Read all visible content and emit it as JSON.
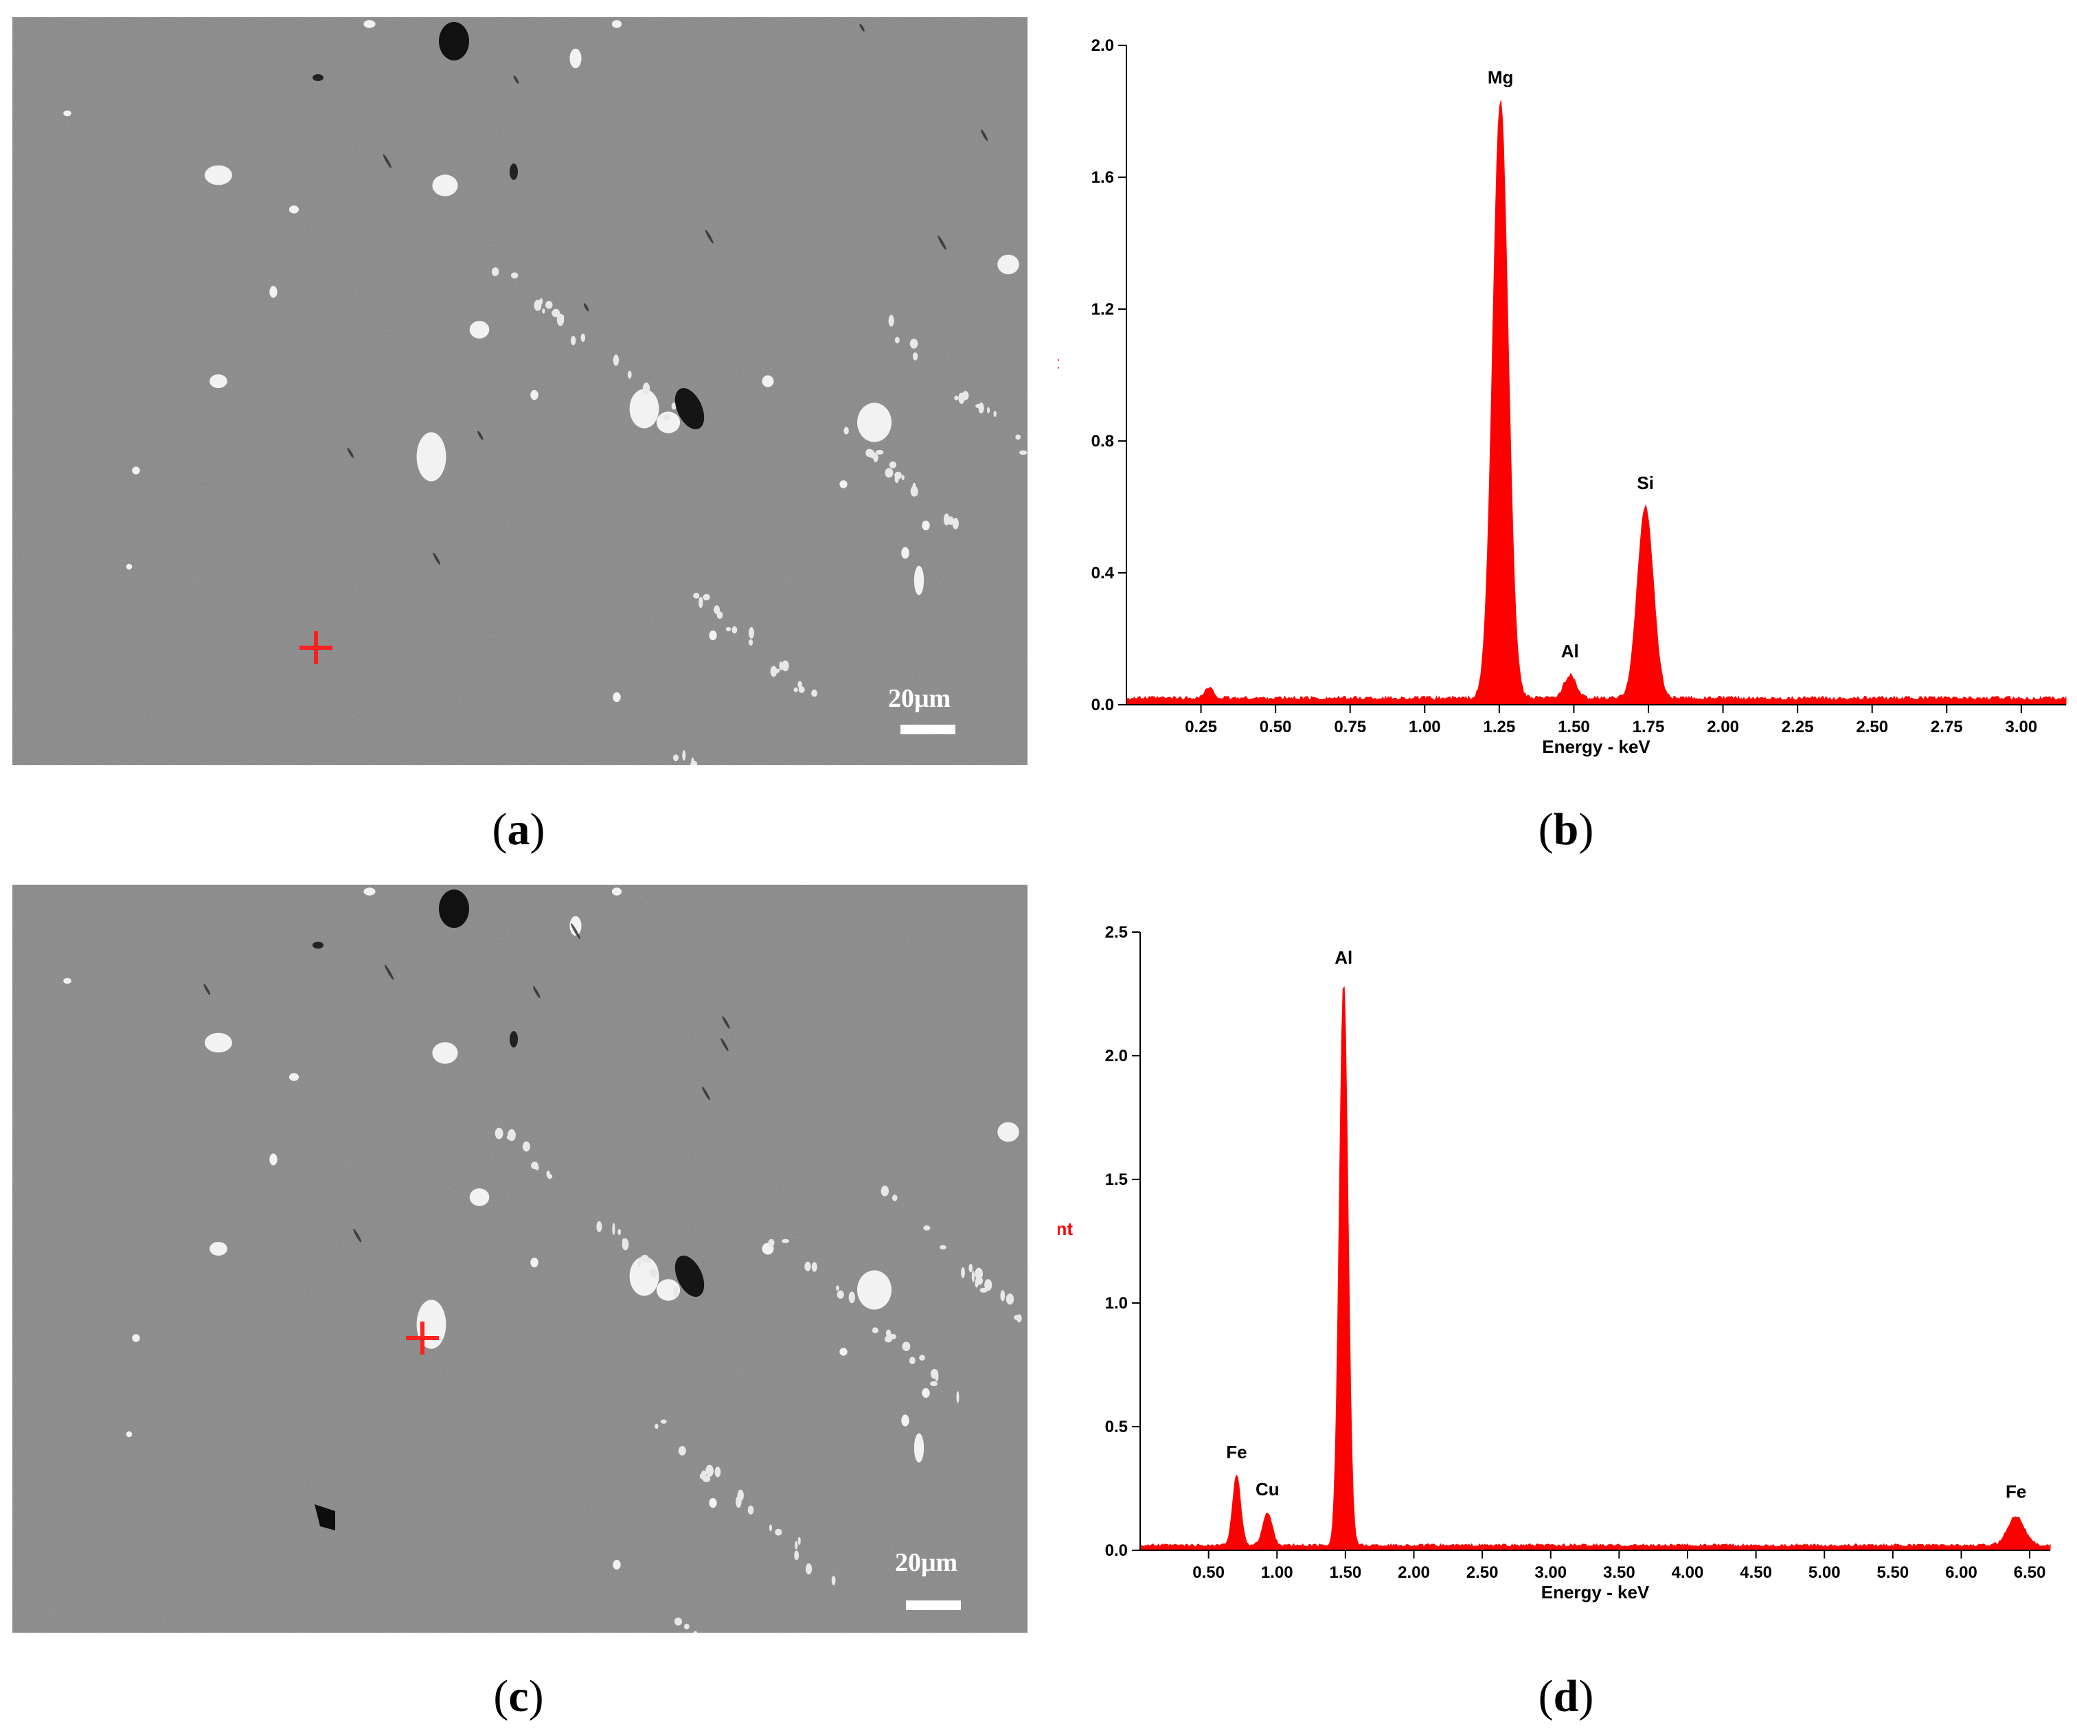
{
  "panels": {
    "a": {
      "label": "a",
      "scale_text": "20μm"
    },
    "b": {
      "label": "b"
    },
    "c": {
      "label": "c",
      "scale_text": "20μm"
    },
    "d": {
      "label": "d"
    }
  },
  "colors": {
    "spectrum": "#ff0000",
    "marker": "#ff2020",
    "sem_background": "#808080"
  },
  "chart_data": [
    {
      "id": "b",
      "type": "area",
      "title": "",
      "xlabel": "Energy - keV",
      "ylabel": "KCnt",
      "xlim": [
        0,
        3.15
      ],
      "ylim": [
        0,
        2.0
      ],
      "xticks": [
        "0.25",
        "0.50",
        "0.75",
        "1.00",
        "1.25",
        "1.50",
        "1.75",
        "2.00",
        "2.25",
        "2.50",
        "2.75",
        "3.00"
      ],
      "yticks": [
        "0.0",
        "0.4",
        "0.8",
        "1.2",
        "1.6",
        "2.0"
      ],
      "baseline": 0.02,
      "peaks": [
        {
          "label": "Mg",
          "x": 1.254,
          "height": 1.81,
          "width": 0.026
        },
        {
          "label": "Al",
          "x": 1.487,
          "height": 0.07,
          "width": 0.02
        },
        {
          "label": "Si",
          "x": 1.74,
          "height": 0.58,
          "width": 0.027
        },
        {
          "label": "",
          "x": 0.277,
          "height": 0.03,
          "width": 0.015
        }
      ]
    },
    {
      "id": "d",
      "type": "area",
      "title": "",
      "xlabel": "Energy - keV",
      "ylabel": "KCnt",
      "xlim": [
        0,
        6.65
      ],
      "ylim": [
        0,
        2.5
      ],
      "xticks": [
        "0.50",
        "1.00",
        "1.50",
        "2.00",
        "2.50",
        "3.00",
        "3.50",
        "4.00",
        "4.50",
        "5.00",
        "5.50",
        "6.00",
        "6.50"
      ],
      "yticks": [
        "0.0",
        "0.5",
        "1.0",
        "1.5",
        "2.0",
        "2.5"
      ],
      "baseline": 0.02,
      "peaks": [
        {
          "label": "Fe",
          "x": 0.705,
          "height": 0.28,
          "width": 0.03
        },
        {
          "label": "Cu",
          "x": 0.93,
          "height": 0.13,
          "width": 0.035
        },
        {
          "label": "Al",
          "x": 1.487,
          "height": 2.28,
          "width": 0.032
        },
        {
          "label": "Fe",
          "x": 6.4,
          "height": 0.12,
          "width": 0.06
        }
      ]
    }
  ]
}
